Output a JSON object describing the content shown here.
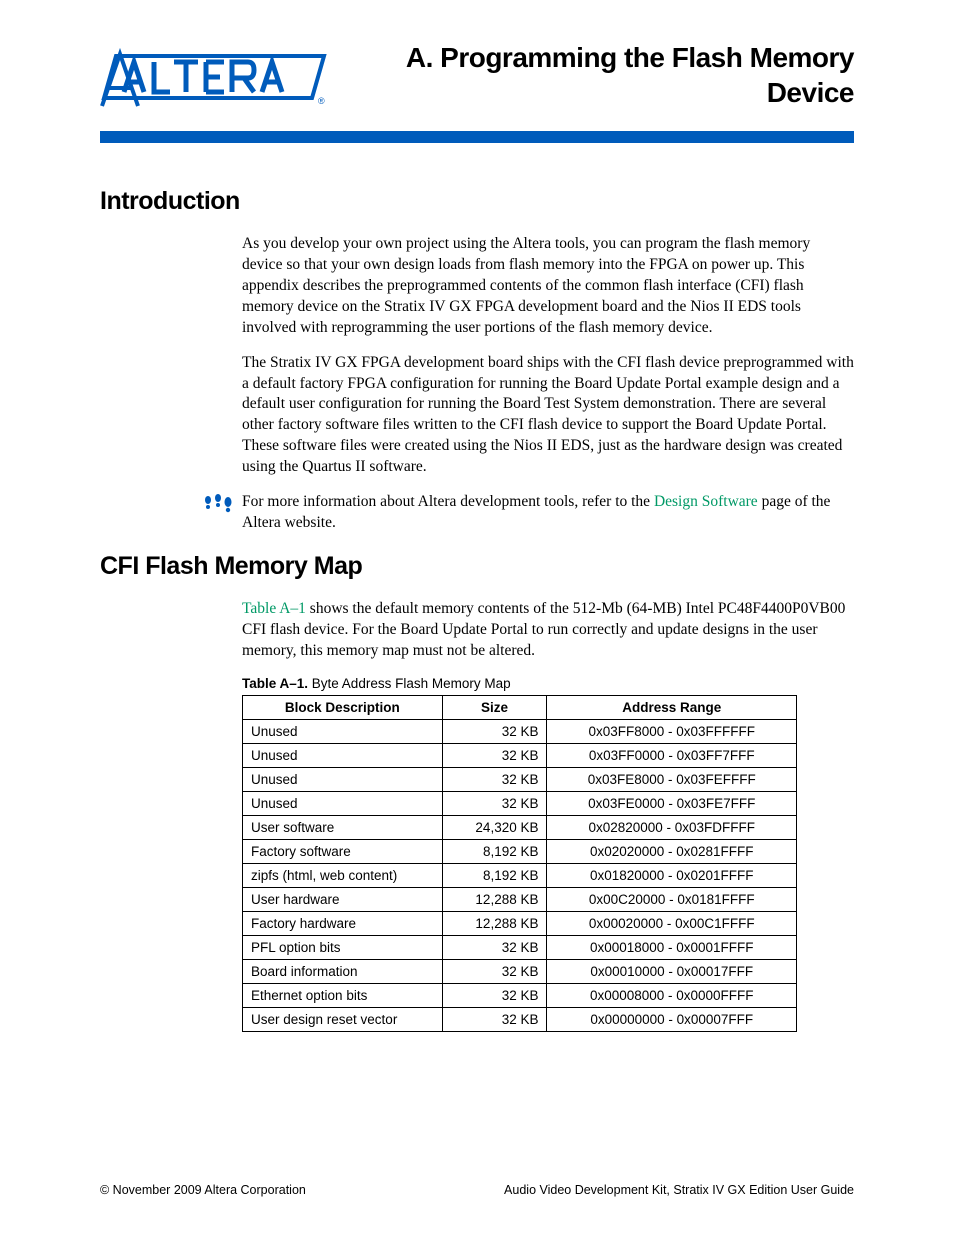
{
  "docTitle": "A.  Programming the Flash Memory Device",
  "sections": {
    "intro": {
      "heading": "Introduction",
      "p1": "As you develop your own project using the Altera tools, you can program the flash memory device so that your own design loads from flash memory into the FPGA on power up. This appendix describes the preprogrammed contents of the common flash interface (CFI) flash memory device on the Stratix IV GX FPGA development board and the Nios II EDS tools involved with reprogramming the user portions of the flash memory device.",
      "p2": "The Stratix IV GX FPGA development board ships with the CFI flash device preprogrammed with a default factory FPGA configuration for running the Board Update Portal example design and a default user configuration for running the Board Test System demonstration. There are several other factory software files written to the CFI flash device to support the Board Update Portal. These software files were created using the Nios II EDS, just as the hardware design was created using the Quartus II software.",
      "infoPre": "For more information about Altera development tools, refer to the ",
      "infoLink": "Design Software",
      "infoPost": " page of the Altera website."
    },
    "map": {
      "heading": "CFI Flash Memory Map",
      "p1a": "Table A–1",
      "p1b": " shows the default memory contents of the 512-Mb (64-MB) Intel PC48F4400P0VB00 CFI flash device. For the Board Update Portal to run correctly and update designs in the user memory, this memory map must not be altered.",
      "tableCaptionBold": "Table A–1.",
      "tableCaptionRest": "  Byte Address Flash Memory Map",
      "columns": [
        "Block Description",
        "Size",
        "Address Range"
      ],
      "rows": [
        [
          "Unused",
          "32 KB",
          "0x03FF8000 - 0x03FFFFFF"
        ],
        [
          "Unused",
          "32 KB",
          "0x03FF0000 - 0x03FF7FFF"
        ],
        [
          "Unused",
          "32 KB",
          "0x03FE8000 - 0x03FEFFFF"
        ],
        [
          "Unused",
          "32 KB",
          "0x03FE0000 - 0x03FE7FFF"
        ],
        [
          "User software",
          "24,320 KB",
          "0x02820000 - 0x03FDFFFF"
        ],
        [
          "Factory software",
          "8,192 KB",
          "0x02020000 - 0x0281FFFF"
        ],
        [
          "zipfs (html, web content)",
          "8,192 KB",
          "0x01820000 - 0x0201FFFF"
        ],
        [
          "User hardware",
          "12,288 KB",
          "0x00C20000 - 0x0181FFFF"
        ],
        [
          "Factory hardware",
          "12,288 KB",
          "0x00020000 - 0x00C1FFFF"
        ],
        [
          "PFL option bits",
          "32 KB",
          "0x00018000 - 0x0001FFFF"
        ],
        [
          "Board information",
          "32 KB",
          "0x00010000 - 0x00017FFF"
        ],
        [
          "Ethernet option bits",
          "32 KB",
          "0x00008000 - 0x0000FFFF"
        ],
        [
          "User design reset vector",
          "32 KB",
          "0x00000000 - 0x00007FFF"
        ]
      ]
    }
  },
  "footer": {
    "left": "© November 2009   Altera Corporation",
    "right": "Audio Video Development Kit, Stratix IV GX Edition User Guide"
  },
  "colors": {
    "brand_blue": "#005bbb",
    "link_green": "#009966"
  }
}
